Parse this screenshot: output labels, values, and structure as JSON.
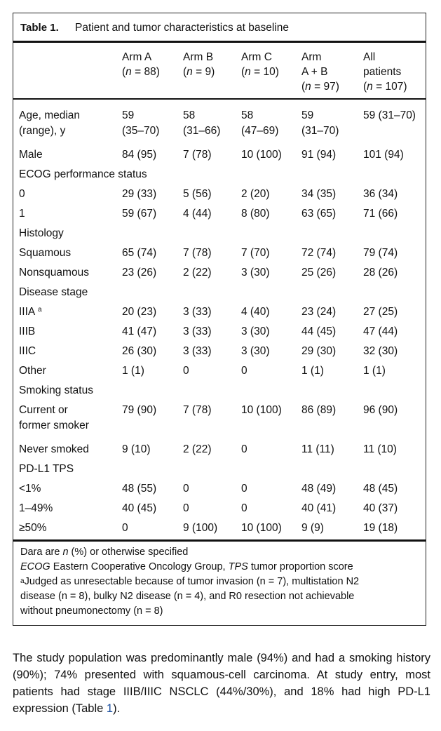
{
  "table": {
    "label": "Table 1.",
    "title": "Patient and tumor characteristics at baseline",
    "columns": [
      {
        "line1": "Arm A",
        "n": "(n = 88)"
      },
      {
        "line1": "Arm B",
        "n": "(n = 9)"
      },
      {
        "line1": "Arm C",
        "n": "(n = 10)"
      },
      {
        "line1": "Arm",
        "line2": "A + B",
        "n": "(n = 97)"
      },
      {
        "line1": "All",
        "line2": "patients",
        "n": "(n = 107)"
      }
    ],
    "rows": [
      {
        "label": "Age, median",
        "label2": "(range), y",
        "a": "59",
        "a2": "(35–70)",
        "b": "58",
        "b2": "(31–66)",
        "c": "58",
        "c2": "(47–69)",
        "ab": "59",
        "ab2": "(31–70)",
        "all": "59 (31–70)"
      },
      {
        "label": "Male",
        "a": "84 (95)",
        "b": "7 (78)",
        "c": "10 (100)",
        "ab": "91 (94)",
        "all": "101 (94)"
      },
      {
        "label": "ECOG performance status"
      },
      {
        "label": "0",
        "a": "29 (33)",
        "b": "5 (56)",
        "c": "2 (20)",
        "ab": "34 (35)",
        "all": "36 (34)"
      },
      {
        "label": "1",
        "a": "59 (67)",
        "b": "4 (44)",
        "c": "8 (80)",
        "ab": "63 (65)",
        "all": "71 (66)"
      },
      {
        "label": "Histology"
      },
      {
        "label": "Squamous",
        "a": "65 (74)",
        "b": "7 (78)",
        "c": "7 (70)",
        "ab": "72 (74)",
        "all": "79 (74)"
      },
      {
        "label": "Nonsquamous",
        "a": "23 (26)",
        "b": "2 (22)",
        "c": "3 (30)",
        "ab": "25 (26)",
        "all": "28 (26)"
      },
      {
        "label": "Disease stage"
      },
      {
        "label": "IIIA",
        "sup": "a",
        "a": "20 (23)",
        "b": "3 (33)",
        "c": "4 (40)",
        "ab": "23 (24)",
        "all": "27 (25)"
      },
      {
        "label": "IIIB",
        "a": "41 (47)",
        "b": "3 (33)",
        "c": "3 (30)",
        "ab": "44 (45)",
        "all": "47 (44)"
      },
      {
        "label": "IIIC",
        "a": "26 (30)",
        "b": "3 (33)",
        "c": "3 (30)",
        "ab": "29 (30)",
        "all": "32 (30)"
      },
      {
        "label": "Other",
        "a": "1 (1)",
        "b": "0",
        "c": "0",
        "ab": "1 (1)",
        "all": "1 (1)"
      },
      {
        "label": "Smoking status"
      },
      {
        "label": "Current or",
        "label2": "former smoker",
        "a": "79 (90)",
        "b": "7 (78)",
        "c": "10 (100)",
        "ab": "86 (89)",
        "all": "96 (90)"
      },
      {
        "label": "Never smoked",
        "a": "9 (10)",
        "b": "2 (22)",
        "c": "0",
        "ab": "11 (11)",
        "all": "11 (10)"
      },
      {
        "label": "PD-L1 TPS"
      },
      {
        "label": "<1%",
        "a": "48 (55)",
        "b": "0",
        "c": "0",
        "ab": "48 (49)",
        "all": "48 (45)"
      },
      {
        "label": "1–49%",
        "a": "40 (45)",
        "b": "0",
        "c": "0",
        "ab": "40 (41)",
        "all": "40 (37)"
      },
      {
        "label": "≥50%",
        "a": "0",
        "b": "9 (100)",
        "c": "10 (100)",
        "ab": "9 (9)",
        "all": "19 (18)"
      }
    ],
    "footnotes": {
      "line1_pre": "Dara are ",
      "line1_n": "n",
      "line1_post": " (%) or otherwise specified",
      "line2_ecog": "ECOG",
      "line2_mid": " Eastern Cooperative Oncology Group, ",
      "line2_tps": "TPS",
      "line2_post": " tumor proportion score",
      "line3_sup": "a",
      "line3_text": "Judged as unresectable because of tumor invasion (n = 7), multistation N2",
      "line4": "disease (n = 8), bulky N2 disease (n = 4), and R0 resection not achievable",
      "line5": "without pneumonectomy (n = 8)"
    }
  },
  "paragraph": {
    "text_before_ref": "The study population was predominantly male (94%) and had a smoking history (90%); 74% presented with squamous-cell carcinoma. At study entry, most patients had stage IIIB/IIIC NSCLC (44%/30%), and 18% had high PD-L1 expression (Table ",
    "ref": "1",
    "text_after_ref": ")."
  }
}
